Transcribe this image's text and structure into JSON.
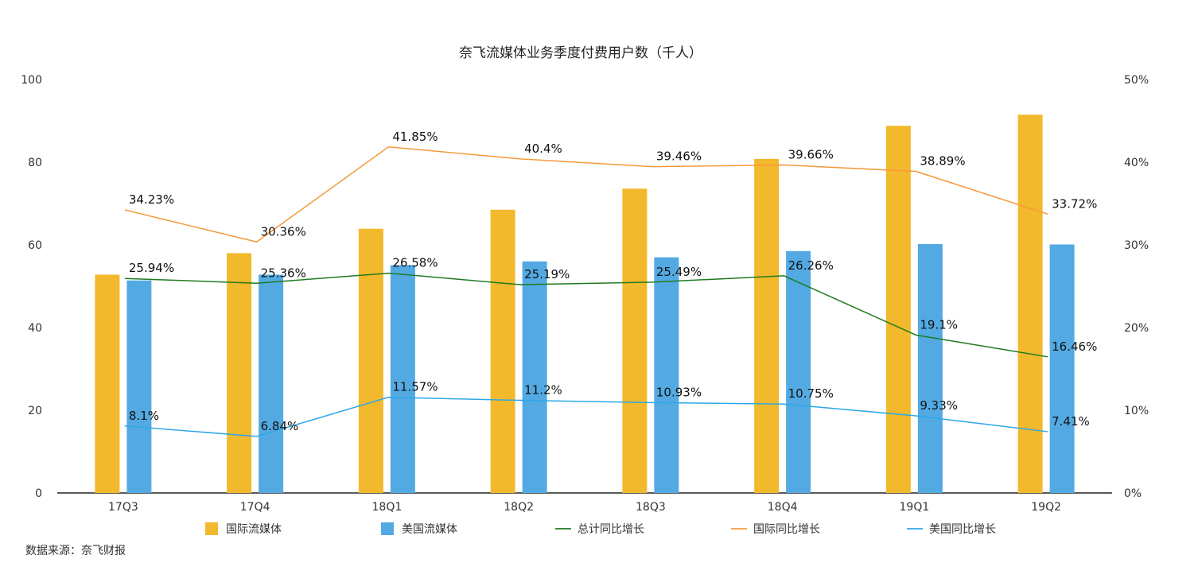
{
  "chart_data": {
    "type": "bar",
    "title": "奈飞流媒体业务季度付费用户数（千人）",
    "categories": [
      "17Q3",
      "17Q4",
      "18Q1",
      "18Q2",
      "18Q3",
      "18Q4",
      "19Q1",
      "19Q2"
    ],
    "ylim": [
      0,
      100
    ],
    "y_ticks": [
      "0",
      "20",
      "40",
      "60",
      "80",
      "100"
    ],
    "y2lim": [
      0,
      50
    ],
    "y2_ticks": [
      "0%",
      "10%",
      "20%",
      "30%",
      "40%",
      "50%"
    ],
    "bar_series": [
      {
        "name": "国际流媒体",
        "color": "#f2b92c",
        "values": [
          52.8,
          58.0,
          63.9,
          68.5,
          73.6,
          80.8,
          88.8,
          91.5
        ]
      },
      {
        "name": "美国流媒体",
        "color": "#53aae3",
        "values": [
          51.4,
          52.8,
          55.1,
          56.0,
          57.0,
          58.5,
          60.2,
          60.1
        ]
      }
    ],
    "line_series": [
      {
        "name": "总计同比增长",
        "color": "#1f7a1f",
        "values": [
          25.94,
          25.36,
          26.58,
          25.19,
          25.49,
          26.26,
          19.1,
          16.46
        ],
        "labels": [
          "25.94%",
          "25.36%",
          "26.58%",
          "25.19%",
          "25.49%",
          "26.26%",
          "19.1%",
          "16.46%"
        ]
      },
      {
        "name": "国际同比增长",
        "color": "#f59a3a",
        "values": [
          34.23,
          30.36,
          41.85,
          40.4,
          39.46,
          39.66,
          38.89,
          33.72
        ],
        "labels": [
          "34.23%",
          "30.36%",
          "41.85%",
          "40.4%",
          "39.46%",
          "39.66%",
          "38.89%",
          "33.72%"
        ]
      },
      {
        "name": "美国同比增长",
        "color": "#2ea7e8",
        "values": [
          8.1,
          6.84,
          11.57,
          11.2,
          10.93,
          10.75,
          9.33,
          7.41
        ],
        "labels": [
          "8.1%",
          "6.84%",
          "11.57%",
          "11.2%",
          "10.93%",
          "10.75%",
          "9.33%",
          "7.41%"
        ]
      }
    ],
    "legend_position": "bottom",
    "grid": false
  },
  "source_note": "数据来源：奈飞财报"
}
